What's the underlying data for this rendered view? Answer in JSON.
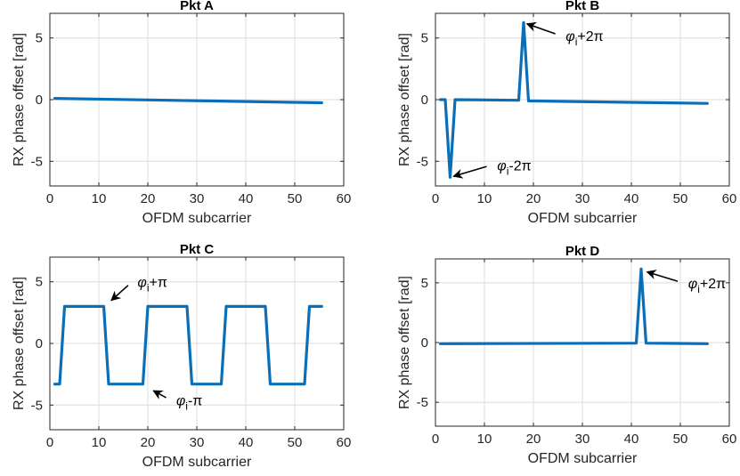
{
  "figure": {
    "axis_color": "#262626",
    "grid_color": "#dcdcdc",
    "line_color": "#0a6fb8"
  },
  "chart_data": [
    {
      "type": "line",
      "title": "Pkt A",
      "xlabel": "OFDM subcarrier",
      "ylabel": "RX phase offset [rad]",
      "xlim": [
        0,
        60
      ],
      "ylim": [
        -7,
        7
      ],
      "xticks": [
        0,
        10,
        20,
        30,
        40,
        50,
        60
      ],
      "yticks": [
        -5,
        0,
        5
      ],
      "grid": true,
      "series": [
        {
          "x": [
            1,
            55.5
          ],
          "y": [
            0.1,
            -0.25
          ]
        }
      ],
      "annotations": []
    },
    {
      "type": "line",
      "title": "Pkt B",
      "xlabel": "OFDM subcarrier",
      "ylabel": "RX phase offset [rad]",
      "xlim": [
        0,
        60
      ],
      "ylim": [
        -7,
        7
      ],
      "xticks": [
        0,
        10,
        20,
        30,
        40,
        50,
        60
      ],
      "yticks": [
        -5,
        0,
        5
      ],
      "grid": true,
      "series": [
        {
          "x": [
            1,
            2,
            3,
            4,
            17,
            18,
            19,
            55.5
          ],
          "y": [
            0.0,
            0.0,
            -6.3,
            0.0,
            -0.05,
            6.25,
            -0.1,
            -0.3
          ]
        }
      ],
      "annotations": [
        {
          "text_main": "φ",
          "text_sub": "i",
          "text_after": "+2π",
          "x": 18,
          "y": 6.25,
          "text_x": 25.5,
          "text_y": 5.2
        },
        {
          "text_main": "φ",
          "text_sub": "i",
          "text_after": "-2π",
          "x": 3,
          "y": -6.3,
          "text_x": 11.5,
          "text_y": -5.3
        }
      ]
    },
    {
      "type": "line",
      "title": "Pkt C",
      "xlabel": "OFDM subcarrier",
      "ylabel": "RX phase offset [rad]",
      "xlim": [
        0,
        60
      ],
      "ylim": [
        -7,
        7
      ],
      "xticks": [
        0,
        10,
        20,
        30,
        40,
        50,
        60
      ],
      "yticks": [
        -5,
        0,
        5
      ],
      "grid": true,
      "series": [
        {
          "x": [
            1,
            2,
            3,
            11,
            12,
            19,
            20,
            28,
            29,
            35,
            36,
            44,
            45,
            52,
            53,
            55.5
          ],
          "y": [
            -3.3,
            -3.3,
            3.0,
            3.0,
            -3.3,
            -3.3,
            3.0,
            3.0,
            -3.3,
            -3.3,
            3.0,
            3.0,
            -3.3,
            -3.3,
            3.0,
            3.0
          ]
        }
      ],
      "annotations": [
        {
          "text_main": "φ",
          "text_sub": "i",
          "text_after": "+π",
          "x": 12,
          "y": 3.3,
          "text_x": 16.8,
          "text_y": 5.0
        },
        {
          "text_main": "φ",
          "text_sub": "i",
          "text_after": "-π",
          "x": 20.5,
          "y": -3.7,
          "text_x": 24.7,
          "text_y": -4.6
        }
      ]
    },
    {
      "type": "line",
      "title": "Pkt D",
      "xlabel": "OFDM subcarrier",
      "ylabel": "RX phase offset [rad]",
      "xlim": [
        0,
        60
      ],
      "ylim": [
        -7,
        7
      ],
      "xticks": [
        0,
        10,
        20,
        30,
        40,
        50,
        60
      ],
      "yticks": [
        -5,
        0,
        5
      ],
      "grid": true,
      "series": [
        {
          "x": [
            1,
            41,
            42,
            43,
            55.5
          ],
          "y": [
            -0.1,
            -0.05,
            6.15,
            -0.05,
            -0.1
          ]
        }
      ],
      "annotations": [
        {
          "text_main": "φ",
          "text_sub": "i",
          "text_after": "+2π",
          "x": 42.5,
          "y": 6.0,
          "text_x": 50.5,
          "text_y": 5.0
        }
      ]
    }
  ]
}
